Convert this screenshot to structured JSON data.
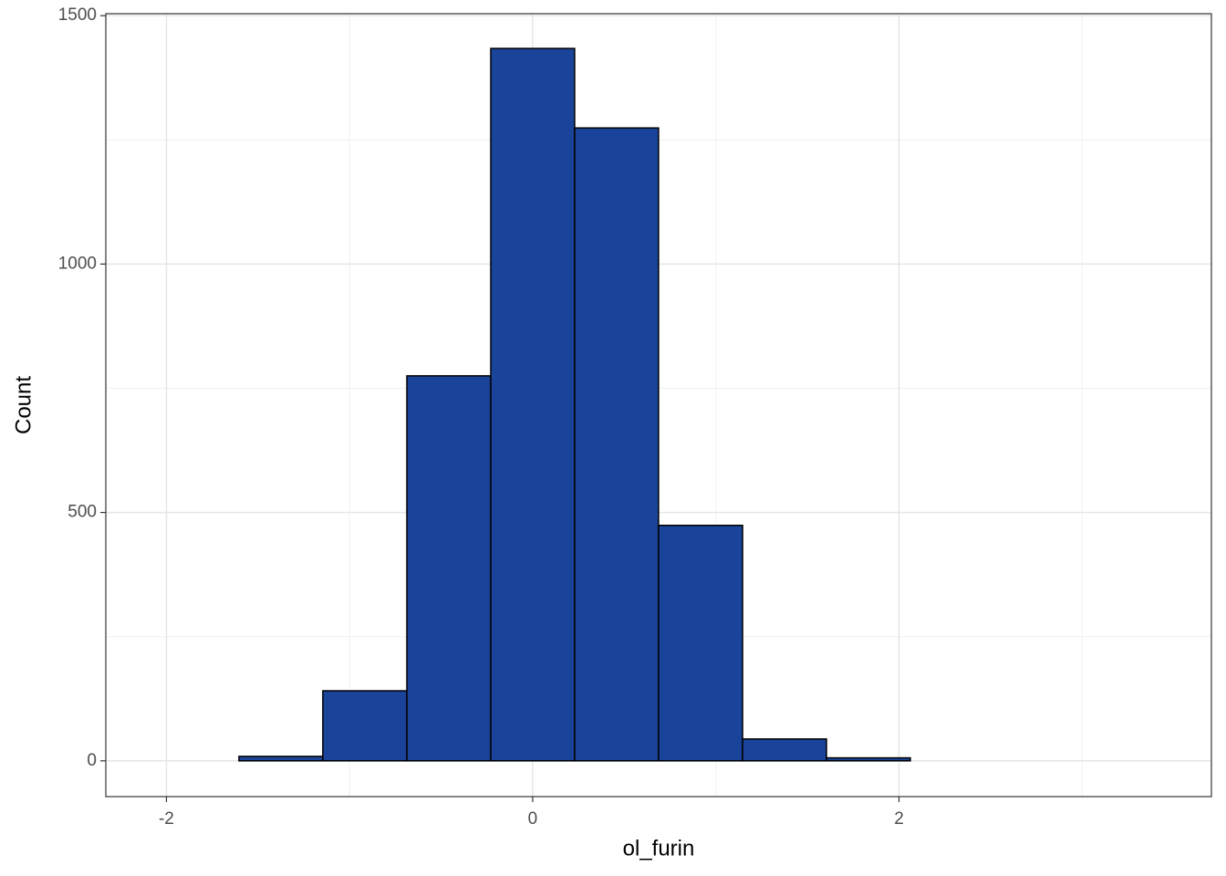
{
  "chart_data": {
    "type": "histogram",
    "x_label": "ol_furin",
    "y_label": "Count",
    "bins": [
      -2.062,
      -1.604,
      -1.146,
      -0.687,
      -0.229,
      0.229,
      0.687,
      1.146,
      1.604,
      2.062,
      2.521,
      2.979,
      3.437
    ],
    "values": [
      0,
      9,
      141,
      775,
      1434,
      1274,
      474,
      44,
      6,
      0,
      0,
      0
    ],
    "color": "#1a4499",
    "xlim": [
      -2.331,
      3.706
    ],
    "xticks": [
      -2,
      0,
      2
    ],
    "x_minor_ticks": [
      -1,
      1,
      3
    ],
    "ylim": [
      -72,
      1504
    ],
    "yticks": [
      0,
      500,
      1000,
      1500
    ],
    "y_minor_ticks": [
      250,
      750,
      1250
    ],
    "grid": true
  }
}
